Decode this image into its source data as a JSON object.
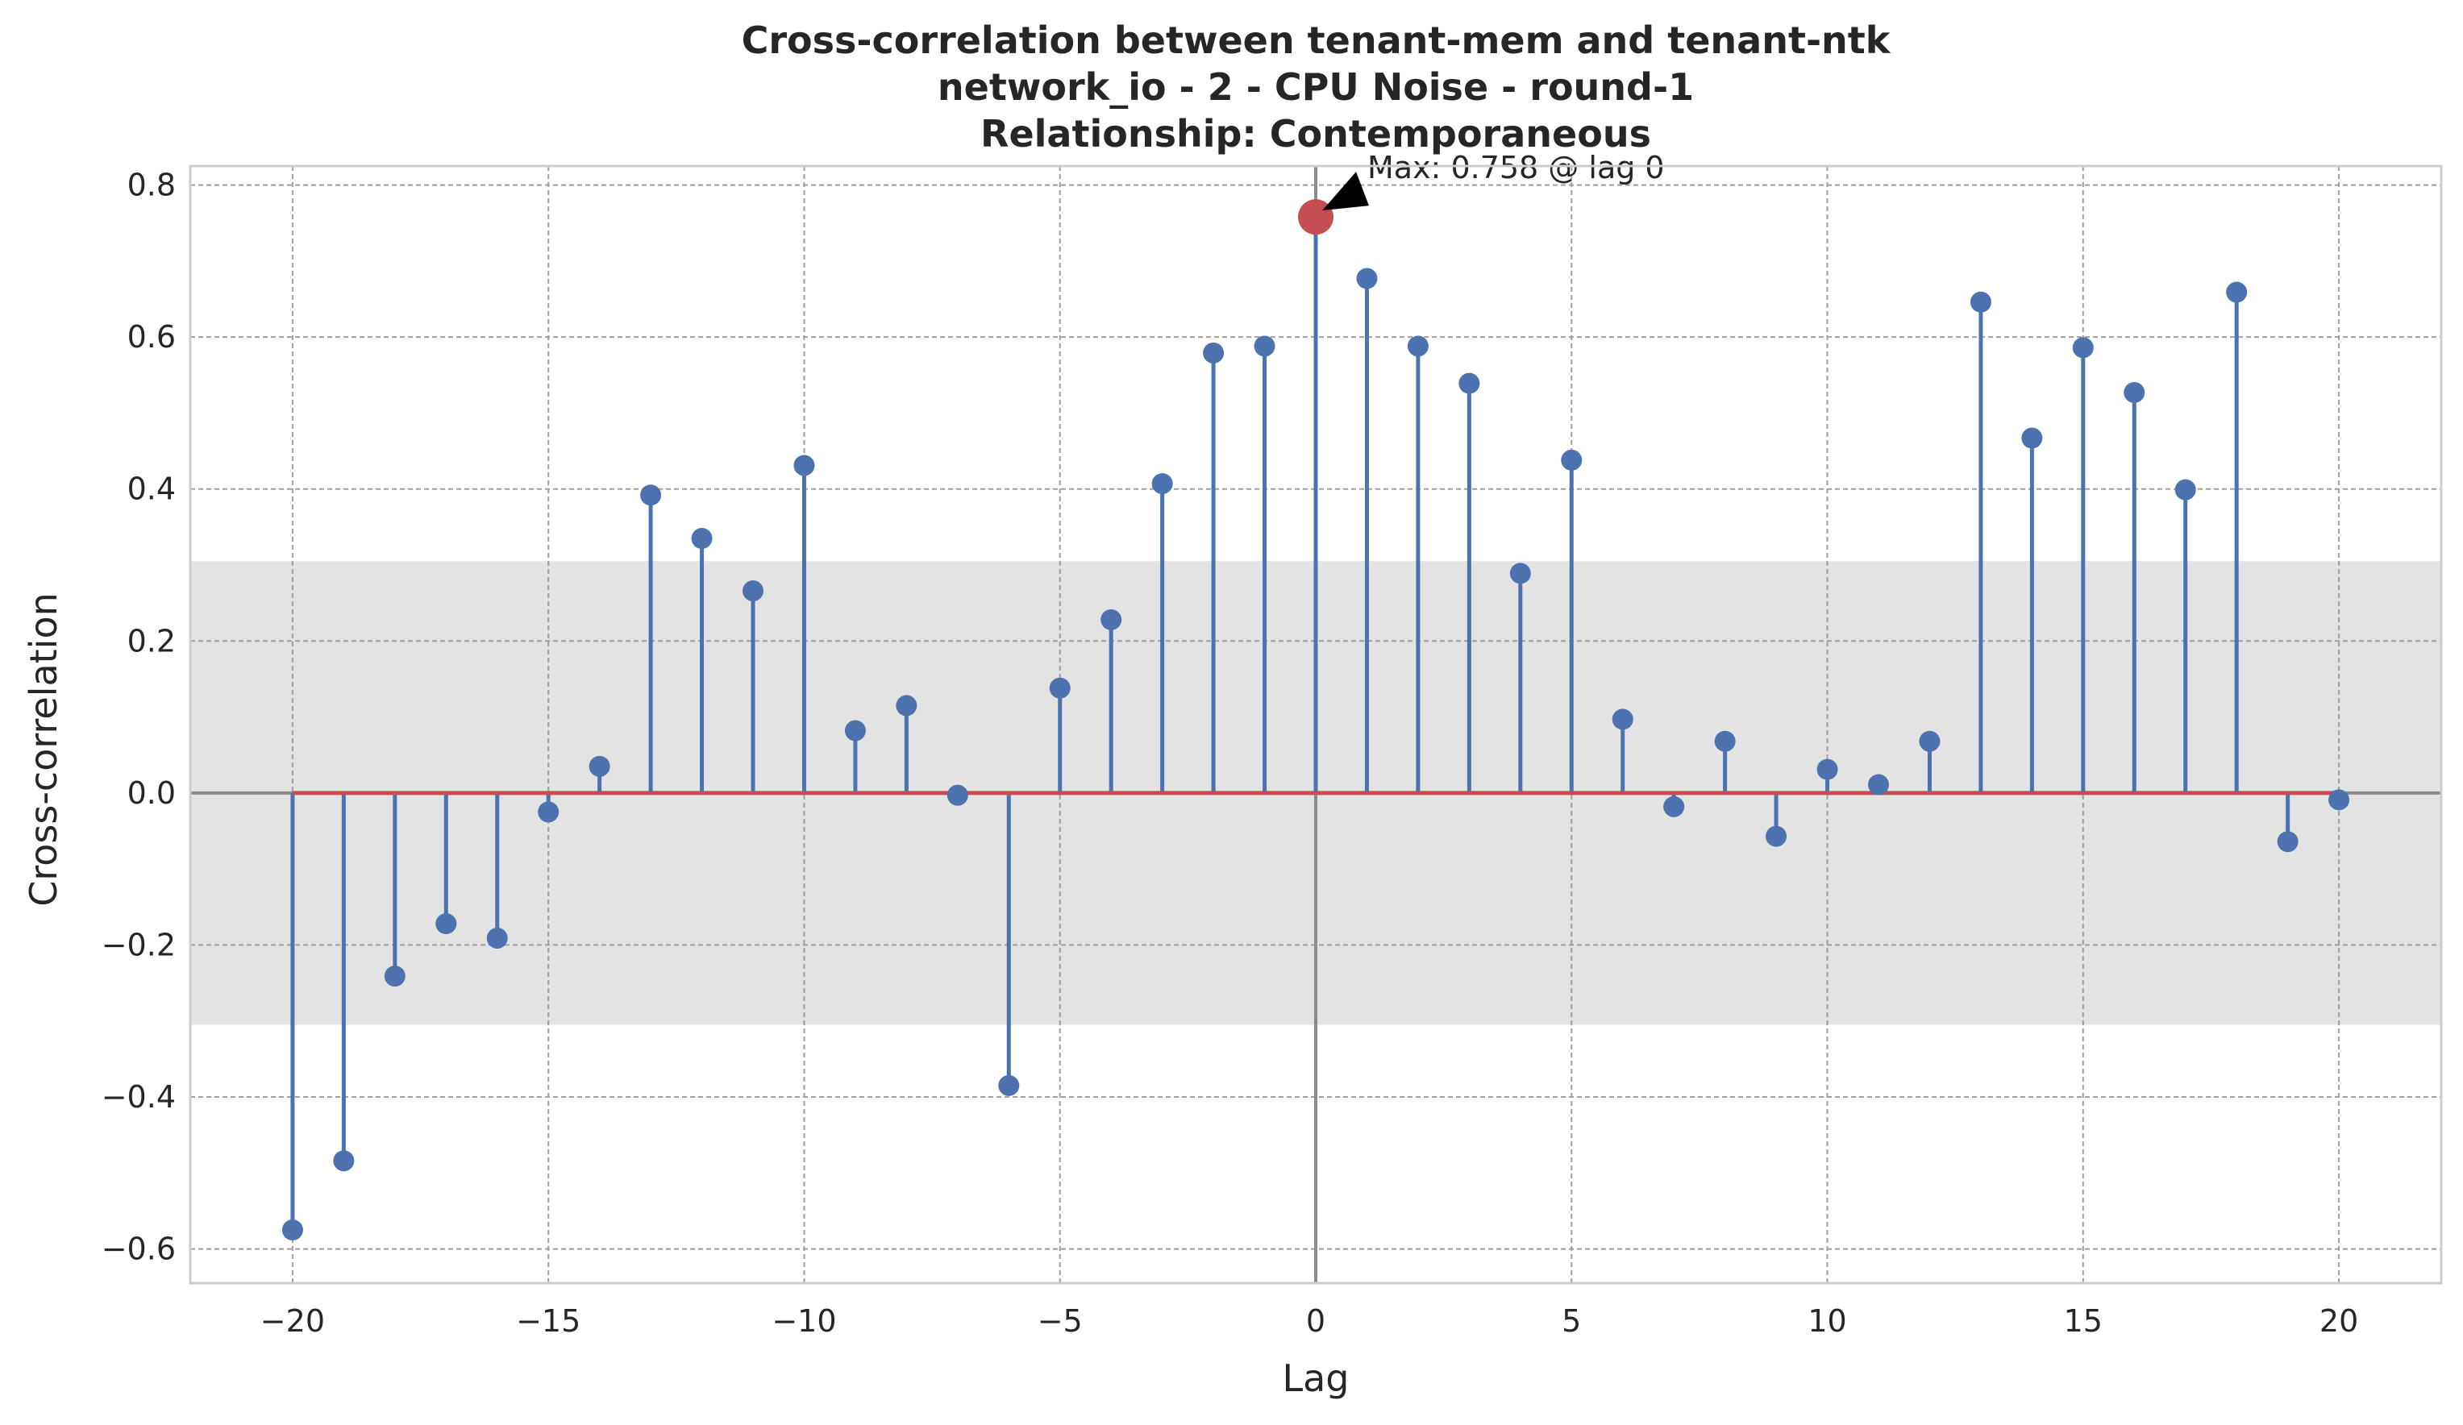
{
  "chart_data": {
    "type": "stem",
    "title": "Cross-correlation between tenant-mem and tenant-ntk",
    "subtitle": "network_io - 2 - CPU Noise - round-1",
    "relationship": "Relationship: Contemporaneous",
    "xlabel": "Lag",
    "ylabel": "Cross-correlation",
    "xlim": [
      -22,
      22
    ],
    "ylim": [
      -0.645,
      0.825
    ],
    "xticks": [
      -20,
      -15,
      -10,
      -5,
      0,
      5,
      10,
      15,
      20
    ],
    "yticks": [
      -0.6,
      -0.4,
      -0.2,
      0.0,
      0.2,
      0.4,
      0.6,
      0.8
    ],
    "grid": true,
    "confidence_band": [
      -0.305,
      0.305
    ],
    "x": [
      -20,
      -19,
      -18,
      -17,
      -16,
      -15,
      -14,
      -13,
      -12,
      -11,
      -10,
      -9,
      -8,
      -7,
      -6,
      -5,
      -4,
      -3,
      -2,
      -1,
      0,
      1,
      2,
      3,
      4,
      5,
      6,
      7,
      8,
      9,
      10,
      11,
      12,
      13,
      14,
      15,
      16,
      17,
      18,
      19,
      20
    ],
    "values": [
      -0.575,
      -0.484,
      -0.241,
      -0.172,
      -0.191,
      -0.025,
      0.035,
      0.392,
      0.335,
      0.266,
      0.431,
      0.082,
      0.115,
      -0.003,
      -0.385,
      0.138,
      0.228,
      0.407,
      0.579,
      0.588,
      0.758,
      0.677,
      0.588,
      0.539,
      0.289,
      0.438,
      0.097,
      -0.018,
      0.068,
      -0.057,
      0.031,
      0.011,
      0.068,
      0.646,
      0.467,
      0.586,
      0.527,
      0.399,
      0.659,
      -0.064,
      -0.009
    ],
    "max": {
      "lag": 0,
      "value": 0.758,
      "label": "Max: 0.758 @ lag 0"
    },
    "colors": {
      "stem": "#4c72b0",
      "max_marker": "#c44e52",
      "baseline": "#c44e52",
      "band": "#e3e3e3",
      "grid": "#a0a0a0",
      "zero_line": "#8c8c8c"
    }
  }
}
